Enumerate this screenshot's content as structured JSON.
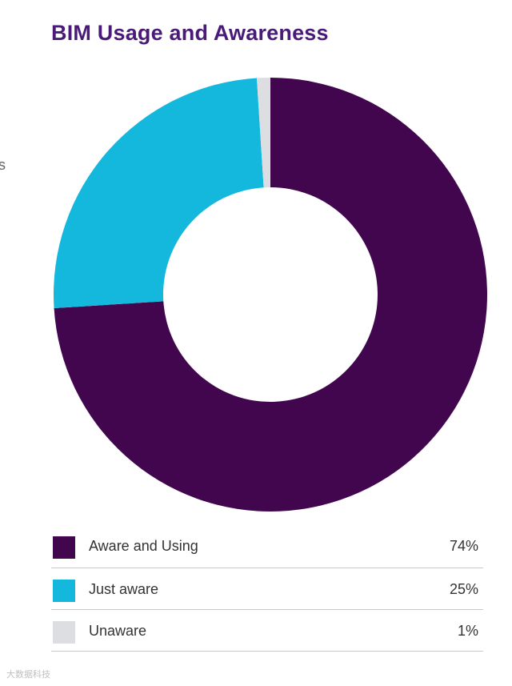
{
  "chart_data": {
    "type": "pie",
    "title": "BIM Usage and Awareness",
    "categories": [
      "Aware and Using",
      "Just aware",
      "Unaware"
    ],
    "values": [
      74,
      25,
      1
    ],
    "value_labels": [
      "74%",
      "25%",
      "1%"
    ],
    "colors": [
      "#42064f",
      "#13b8dc",
      "#dcdee2"
    ],
    "donut": true,
    "legend_position": "bottom"
  },
  "edge_fragment": "s",
  "watermark": "大数据科技"
}
